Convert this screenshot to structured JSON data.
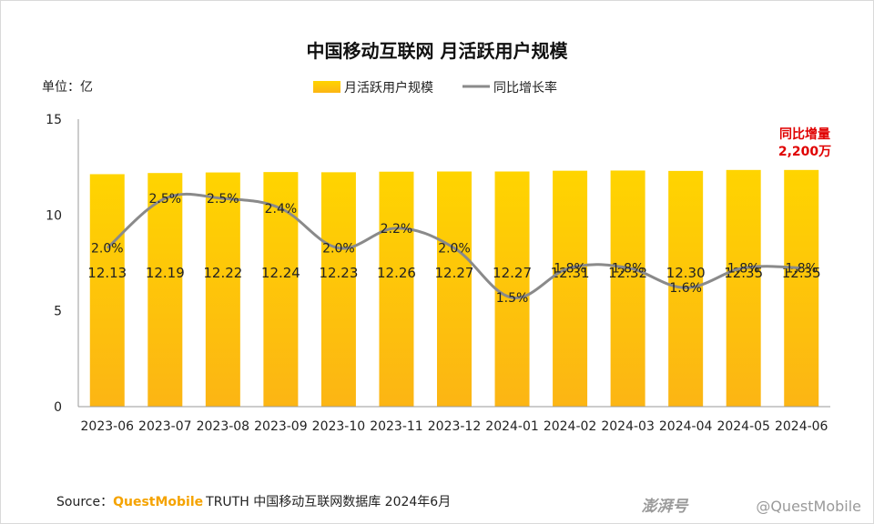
{
  "chart_data": {
    "type": "bar",
    "title": "中国移动互联网 月活跃用户规模",
    "unit_label": "单位：亿",
    "categories": [
      "2023-06",
      "2023-07",
      "2023-08",
      "2023-09",
      "2023-10",
      "2023-11",
      "2023-12",
      "2024-01",
      "2024-02",
      "2024-03",
      "2024-04",
      "2024-05",
      "2024-06"
    ],
    "series": [
      {
        "name": "月活跃用户规模",
        "type": "bar",
        "values": [
          12.13,
          12.19,
          12.22,
          12.24,
          12.23,
          12.26,
          12.27,
          12.27,
          12.31,
          12.32,
          12.3,
          12.35,
          12.35
        ],
        "labels": [
          "12.13",
          "12.19",
          "12.22",
          "12.24",
          "12.23",
          "12.26",
          "12.27",
          "12.27",
          "12.31",
          "12.32",
          "12.30",
          "12.35",
          "12.35"
        ]
      },
      {
        "name": "同比增长率",
        "type": "line",
        "values": [
          2.0,
          2.5,
          2.5,
          2.4,
          2.0,
          2.2,
          2.0,
          1.5,
          1.8,
          1.8,
          1.6,
          1.8,
          1.8
        ],
        "labels": [
          "2.0%",
          "2.5%",
          "2.5%",
          "2.4%",
          "2.0%",
          "2.2%",
          "2.0%",
          "1.5%",
          "1.8%",
          "1.8%",
          "1.6%",
          "1.8%",
          "1.8%"
        ]
      }
    ],
    "y_ticks": [
      "0",
      "5",
      "10",
      "15"
    ],
    "ylim": [
      0,
      15
    ],
    "annotation": {
      "line1": "同比增量",
      "line2": "2,200万"
    },
    "colors": {
      "bar_top": "#ffd400",
      "bar_bottom": "#fcb514",
      "line": "#8a8a8a",
      "annotation": "#e00000"
    },
    "legend_position": "top-center",
    "grid": false
  },
  "source": {
    "prefix": "Source：",
    "brand": "QuestMobile",
    "rest": "TRUTH 中国移动互联网数据库 2024年6月"
  },
  "watermark": {
    "site": "澎湃号",
    "handle": "@QuestMobile"
  }
}
